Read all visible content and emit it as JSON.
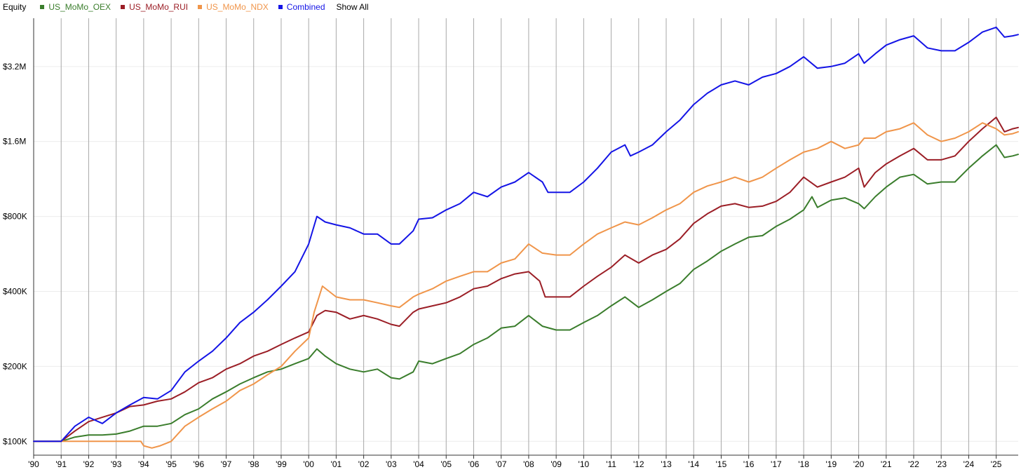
{
  "legend": {
    "title": "Equity",
    "show_all_label": "Show All"
  },
  "chart_data": {
    "type": "line",
    "title": "Equity",
    "xlabel": "",
    "ylabel": "",
    "y_scale": "log",
    "ylim": [
      88000,
      5000000
    ],
    "xlim": [
      1990.0,
      2025.8
    ],
    "grid": "vertical lines at each year; faint horizontal lines at y ticks",
    "x_ticks": [
      {
        "x": 1990,
        "label": "'90"
      },
      {
        "x": 1991,
        "label": "'91"
      },
      {
        "x": 1992,
        "label": "'92"
      },
      {
        "x": 1993,
        "label": "'93"
      },
      {
        "x": 1994,
        "label": "'94"
      },
      {
        "x": 1995,
        "label": "'95"
      },
      {
        "x": 1996,
        "label": "'96"
      },
      {
        "x": 1997,
        "label": "'97"
      },
      {
        "x": 1998,
        "label": "'98"
      },
      {
        "x": 1999,
        "label": "'99"
      },
      {
        "x": 2000,
        "label": "'00"
      },
      {
        "x": 2001,
        "label": "'01"
      },
      {
        "x": 2002,
        "label": "'02"
      },
      {
        "x": 2003,
        "label": "'03"
      },
      {
        "x": 2004,
        "label": "'04"
      },
      {
        "x": 2005,
        "label": "'05"
      },
      {
        "x": 2006,
        "label": "'06"
      },
      {
        "x": 2007,
        "label": "'07"
      },
      {
        "x": 2008,
        "label": "'08"
      },
      {
        "x": 2009,
        "label": "'09"
      },
      {
        "x": 2010,
        "label": "'10"
      },
      {
        "x": 2011,
        "label": "'11"
      },
      {
        "x": 2012,
        "label": "'12"
      },
      {
        "x": 2013,
        "label": "'13"
      },
      {
        "x": 2014,
        "label": "'14"
      },
      {
        "x": 2015,
        "label": "'15"
      },
      {
        "x": 2016,
        "label": "'16"
      },
      {
        "x": 2017,
        "label": "'17"
      },
      {
        "x": 2018,
        "label": "'18"
      },
      {
        "x": 2019,
        "label": "'19"
      },
      {
        "x": 2020,
        "label": "'20"
      },
      {
        "x": 2021,
        "label": "'21"
      },
      {
        "x": 2022,
        "label": "'22"
      },
      {
        "x": 2023,
        "label": "'23"
      },
      {
        "x": 2024,
        "label": "'24"
      },
      {
        "x": 2025,
        "label": "'25"
      }
    ],
    "y_ticks": [
      {
        "y": 100000,
        "label": "$100K"
      },
      {
        "y": 200000,
        "label": "$200K"
      },
      {
        "y": 400000,
        "label": "$400K"
      },
      {
        "y": 800000,
        "label": "$800K"
      },
      {
        "y": 1600000,
        "label": "$1.6M"
      },
      {
        "y": 3200000,
        "label": "$3.2M"
      }
    ],
    "series": [
      {
        "name": "US_MoMo_OEX",
        "color": "#3a7d2c",
        "x": [
          1990.0,
          1991.0,
          1991.5,
          1992.0,
          1992.5,
          1993.0,
          1993.5,
          1994.0,
          1994.5,
          1995.0,
          1995.5,
          1996.0,
          1996.5,
          1997.0,
          1997.5,
          1998.0,
          1998.5,
          1999.0,
          1999.5,
          2000.0,
          2000.3,
          2000.6,
          2001.0,
          2001.5,
          2002.0,
          2002.5,
          2003.0,
          2003.3,
          2003.8,
          2004.0,
          2004.5,
          2005.0,
          2005.5,
          2006.0,
          2006.5,
          2007.0,
          2007.5,
          2008.0,
          2008.5,
          2009.0,
          2009.5,
          2010.0,
          2010.5,
          2011.0,
          2011.5,
          2012.0,
          2012.5,
          2013.0,
          2013.5,
          2014.0,
          2014.5,
          2015.0,
          2015.5,
          2016.0,
          2016.5,
          2017.0,
          2017.5,
          2018.0,
          2018.3,
          2018.5,
          2019.0,
          2019.5,
          2020.0,
          2020.2,
          2020.6,
          2021.0,
          2021.5,
          2022.0,
          2022.5,
          2023.0,
          2023.5,
          2024.0,
          2024.5,
          2025.0,
          2025.3,
          2025.6,
          2025.8
        ],
        "y": [
          100000,
          100000,
          104000,
          106000,
          106000,
          107000,
          110000,
          115000,
          115000,
          118000,
          128000,
          135000,
          148000,
          158000,
          170000,
          180000,
          190000,
          195000,
          205000,
          215000,
          235000,
          220000,
          205000,
          195000,
          190000,
          195000,
          180000,
          178000,
          190000,
          210000,
          205000,
          215000,
          225000,
          245000,
          260000,
          285000,
          290000,
          320000,
          290000,
          280000,
          280000,
          300000,
          320000,
          350000,
          380000,
          345000,
          370000,
          400000,
          430000,
          490000,
          530000,
          580000,
          620000,
          660000,
          670000,
          730000,
          780000,
          850000,
          960000,
          870000,
          930000,
          950000,
          900000,
          860000,
          960000,
          1050000,
          1150000,
          1180000,
          1080000,
          1100000,
          1100000,
          1250000,
          1400000,
          1550000,
          1380000,
          1400000,
          1420000
        ]
      },
      {
        "name": "US_MoMo_RUI",
        "color": "#9b1e26",
        "x": [
          1990.0,
          1991.0,
          1991.5,
          1992.0,
          1992.5,
          1993.0,
          1993.5,
          1994.0,
          1994.5,
          1995.0,
          1995.5,
          1996.0,
          1996.5,
          1997.0,
          1997.5,
          1998.0,
          1998.5,
          1999.0,
          1999.5,
          2000.0,
          2000.3,
          2000.6,
          2001.0,
          2001.5,
          2002.0,
          2002.5,
          2003.0,
          2003.3,
          2003.8,
          2004.0,
          2004.5,
          2005.0,
          2005.5,
          2006.0,
          2006.5,
          2007.0,
          2007.5,
          2008.0,
          2008.4,
          2008.6,
          2009.0,
          2009.5,
          2010.0,
          2010.5,
          2011.0,
          2011.5,
          2012.0,
          2012.5,
          2013.0,
          2013.5,
          2014.0,
          2014.5,
          2015.0,
          2015.5,
          2016.0,
          2016.5,
          2017.0,
          2017.5,
          2018.0,
          2018.5,
          2019.0,
          2019.5,
          2020.0,
          2020.2,
          2020.6,
          2021.0,
          2021.5,
          2022.0,
          2022.5,
          2023.0,
          2023.5,
          2024.0,
          2024.5,
          2025.0,
          2025.3,
          2025.6,
          2025.8
        ],
        "y": [
          100000,
          100000,
          110000,
          120000,
          125000,
          130000,
          138000,
          140000,
          145000,
          148000,
          158000,
          172000,
          180000,
          195000,
          205000,
          220000,
          230000,
          245000,
          260000,
          275000,
          320000,
          335000,
          330000,
          310000,
          320000,
          310000,
          295000,
          290000,
          330000,
          340000,
          350000,
          360000,
          380000,
          410000,
          420000,
          450000,
          470000,
          480000,
          440000,
          380000,
          380000,
          380000,
          420000,
          460000,
          500000,
          560000,
          520000,
          560000,
          590000,
          650000,
          750000,
          820000,
          880000,
          900000,
          870000,
          880000,
          920000,
          1000000,
          1150000,
          1050000,
          1100000,
          1150000,
          1250000,
          1050000,
          1200000,
          1300000,
          1400000,
          1500000,
          1350000,
          1350000,
          1400000,
          1600000,
          1800000,
          2000000,
          1750000,
          1800000,
          1820000
        ]
      },
      {
        "name": "US_MoMo_NDX",
        "color": "#f0954a",
        "x": [
          1990.0,
          1991.0,
          1992.0,
          1993.0,
          1993.9,
          1994.0,
          1994.3,
          1994.6,
          1995.0,
          1995.5,
          1996.0,
          1996.5,
          1997.0,
          1997.5,
          1998.0,
          1998.5,
          1999.0,
          1999.5,
          2000.0,
          2000.2,
          2000.5,
          2001.0,
          2001.5,
          2002.0,
          2002.5,
          2003.0,
          2003.3,
          2003.8,
          2004.0,
          2004.5,
          2005.0,
          2005.5,
          2006.0,
          2006.5,
          2007.0,
          2007.5,
          2008.0,
          2008.5,
          2009.0,
          2009.5,
          2010.0,
          2010.5,
          2011.0,
          2011.5,
          2012.0,
          2012.5,
          2013.0,
          2013.5,
          2014.0,
          2014.5,
          2015.0,
          2015.5,
          2016.0,
          2016.5,
          2017.0,
          2017.5,
          2018.0,
          2018.5,
          2019.0,
          2019.5,
          2020.0,
          2020.2,
          2020.6,
          2021.0,
          2021.5,
          2022.0,
          2022.5,
          2023.0,
          2023.5,
          2024.0,
          2024.5,
          2025.0,
          2025.3,
          2025.6,
          2025.8
        ],
        "y": [
          100000,
          100000,
          100000,
          100000,
          100000,
          96000,
          94000,
          96000,
          100000,
          115000,
          125000,
          135000,
          145000,
          160000,
          170000,
          185000,
          200000,
          230000,
          260000,
          330000,
          420000,
          380000,
          370000,
          370000,
          360000,
          350000,
          345000,
          380000,
          390000,
          410000,
          440000,
          460000,
          480000,
          480000,
          520000,
          540000,
          620000,
          570000,
          560000,
          560000,
          620000,
          680000,
          720000,
          760000,
          740000,
          790000,
          850000,
          900000,
          1000000,
          1060000,
          1100000,
          1150000,
          1100000,
          1150000,
          1250000,
          1350000,
          1450000,
          1500000,
          1600000,
          1500000,
          1550000,
          1650000,
          1650000,
          1750000,
          1800000,
          1900000,
          1700000,
          1600000,
          1650000,
          1750000,
          1900000,
          1800000,
          1700000,
          1720000,
          1750000
        ]
      },
      {
        "name": "Combined",
        "color": "#1414e6",
        "x": [
          1990.0,
          1991.0,
          1991.5,
          1992.0,
          1992.5,
          1993.0,
          1993.5,
          1994.0,
          1994.5,
          1995.0,
          1995.5,
          1996.0,
          1996.5,
          1997.0,
          1997.5,
          1998.0,
          1998.5,
          1999.0,
          1999.5,
          2000.0,
          2000.3,
          2000.6,
          2001.0,
          2001.5,
          2002.0,
          2002.5,
          2003.0,
          2003.3,
          2003.8,
          2004.0,
          2004.5,
          2005.0,
          2005.5,
          2006.0,
          2006.5,
          2007.0,
          2007.5,
          2008.0,
          2008.5,
          2008.7,
          2009.0,
          2009.5,
          2010.0,
          2010.5,
          2011.0,
          2011.5,
          2011.7,
          2012.0,
          2012.5,
          2013.0,
          2013.5,
          2014.0,
          2014.5,
          2015.0,
          2015.5,
          2016.0,
          2016.5,
          2017.0,
          2017.5,
          2018.0,
          2018.5,
          2019.0,
          2019.5,
          2020.0,
          2020.2,
          2020.6,
          2021.0,
          2021.5,
          2022.0,
          2022.5,
          2023.0,
          2023.5,
          2024.0,
          2024.5,
          2025.0,
          2025.3,
          2025.6,
          2025.8
        ],
        "y": [
          100000,
          100000,
          115000,
          125000,
          118000,
          130000,
          140000,
          150000,
          148000,
          160000,
          190000,
          210000,
          230000,
          260000,
          300000,
          330000,
          370000,
          420000,
          480000,
          620000,
          800000,
          760000,
          740000,
          720000,
          680000,
          680000,
          620000,
          620000,
          700000,
          780000,
          790000,
          850000,
          900000,
          1000000,
          960000,
          1050000,
          1100000,
          1200000,
          1100000,
          1000000,
          1000000,
          1000000,
          1100000,
          1250000,
          1450000,
          1550000,
          1400000,
          1450000,
          1550000,
          1750000,
          1950000,
          2250000,
          2500000,
          2700000,
          2800000,
          2700000,
          2900000,
          3000000,
          3200000,
          3500000,
          3150000,
          3200000,
          3300000,
          3600000,
          3300000,
          3600000,
          3900000,
          4100000,
          4250000,
          3800000,
          3700000,
          3700000,
          4000000,
          4400000,
          4600000,
          4200000,
          4250000,
          4300000
        ]
      }
    ]
  }
}
